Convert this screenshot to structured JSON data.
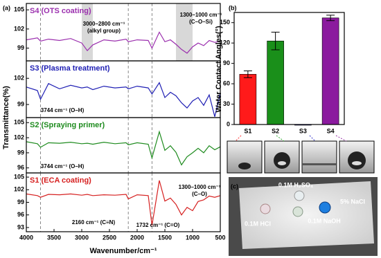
{
  "panel_labels": [
    "(a)",
    "(b)",
    "(c)"
  ],
  "photo_labels": [
    "0.1M H₂SO₄",
    "5% NaCl",
    "0.1M HCl",
    "0.1M NaOH"
  ],
  "chart_data": [
    {
      "type": "line",
      "title": "S4 (OTS coating)",
      "color": "#9b2fae",
      "ylabel": "Transmittance(%)",
      "x": [
        4000,
        3800,
        3744,
        3600,
        3400,
        3200,
        3000,
        2900,
        2800,
        2600,
        2400,
        2200,
        2160,
        2000,
        1800,
        1732,
        1600,
        1500,
        1400,
        1300,
        1200,
        1100,
        1000,
        900,
        800,
        700,
        600,
        500
      ],
      "values": [
        100.3,
        100.6,
        100.1,
        100.4,
        100.2,
        100.5,
        99.8,
        98.6,
        99.5,
        100.3,
        100.1,
        100.4,
        100.0,
        100.3,
        100.2,
        99.0,
        101.5,
        100.0,
        100.3,
        99.6,
        98.8,
        98.2,
        99.2,
        99.8,
        99.4,
        100.2,
        99.9,
        100.1
      ],
      "xlim": [
        4000,
        500
      ],
      "ylim": [
        97,
        106
      ],
      "yticks": [
        99,
        102,
        105
      ],
      "vlines": [
        3744,
        2160,
        1732
      ],
      "bands": [
        [
          3000,
          2800
        ],
        [
          1300,
          1000
        ]
      ],
      "annotations": [
        [
          "3000–2800 cm⁻¹",
          "(alkyl group)"
        ],
        [
          "1300–1000 cm⁻¹",
          "(C–O–Si)"
        ]
      ]
    },
    {
      "type": "line",
      "title": "S3 (Plasma treatment)",
      "color": "#1f1fb4",
      "x": [
        4000,
        3800,
        3744,
        3600,
        3400,
        3200,
        3000,
        2900,
        2800,
        2600,
        2400,
        2200,
        2160,
        2000,
        1800,
        1732,
        1600,
        1500,
        1400,
        1300,
        1200,
        1100,
        1000,
        900,
        800,
        700,
        600,
        500
      ],
      "values": [
        101.0,
        100.6,
        99.6,
        101.4,
        100.8,
        101.2,
        100.9,
        101.0,
        100.7,
        101.1,
        100.9,
        101.0,
        100.8,
        101.1,
        100.9,
        100.2,
        101.5,
        99.8,
        100.4,
        100.0,
        99.2,
        98.6,
        99.4,
        99.8,
        98.9,
        100.1,
        97.6,
        100.3
      ],
      "xlim": [
        4000,
        500
      ],
      "ylim": [
        97.5,
        104
      ],
      "yticks": [
        99,
        102
      ],
      "vlines": [
        3744,
        2160,
        1732
      ],
      "annotations": [
        [
          "3744 cm⁻¹ (O–H)"
        ]
      ]
    },
    {
      "type": "line",
      "title": "S2 (Spraying primer)",
      "color": "#1e8b1e",
      "x": [
        4000,
        3800,
        3744,
        3600,
        3400,
        3200,
        3000,
        2900,
        2800,
        2600,
        2400,
        2200,
        2160,
        2000,
        1800,
        1732,
        1600,
        1500,
        1400,
        1300,
        1200,
        1100,
        1000,
        900,
        800,
        700,
        600,
        500
      ],
      "values": [
        101.2,
        100.8,
        100.1,
        101.0,
        100.9,
        101.1,
        100.8,
        100.9,
        100.7,
        101.1,
        100.8,
        101.0,
        100.6,
        101.0,
        100.7,
        98.0,
        103.2,
        99.5,
        100.4,
        99.1,
        96.6,
        98.2,
        99.0,
        99.9,
        99.0,
        100.4,
        99.6,
        100.2
      ],
      "xlim": [
        4000,
        500
      ],
      "ylim": [
        95,
        106
      ],
      "yticks": [
        96,
        99,
        102,
        105
      ],
      "vlines": [
        3744,
        2160,
        1732
      ],
      "annotations": [
        [
          "3744 cm⁻¹ (O–H)"
        ]
      ]
    },
    {
      "type": "line",
      "title": "S1 (ECA coating)",
      "color": "#d62020",
      "xlabel": "Wavenumber/cm⁻¹",
      "x": [
        4000,
        3800,
        3744,
        3600,
        3400,
        3200,
        3000,
        2900,
        2800,
        2600,
        2400,
        2200,
        2160,
        2000,
        1800,
        1732,
        1600,
        1500,
        1400,
        1300,
        1200,
        1100,
        1000,
        900,
        800,
        700,
        600,
        500
      ],
      "values": [
        101.0,
        100.6,
        100.2,
        100.9,
        100.8,
        101.0,
        100.7,
        100.9,
        100.6,
        100.8,
        100.7,
        100.9,
        99.8,
        100.8,
        100.6,
        93.5,
        104.2,
        99.3,
        100.0,
        98.5,
        96.0,
        97.8,
        97.0,
        99.2,
        99.6,
        100.5,
        100.2,
        100.6
      ],
      "xlim": [
        4000,
        500
      ],
      "xticks": [
        4000,
        3500,
        3000,
        2500,
        2000,
        1500,
        1000,
        500
      ],
      "ylim": [
        92,
        106
      ],
      "yticks": [
        93,
        96,
        99,
        102,
        105
      ],
      "vlines": [
        3744,
        2160,
        1732
      ],
      "annotations": [
        [
          "1300–1000 cm⁻¹",
          "(C–O)"
        ],
        [
          "2160 cm⁻¹ (C≡N)"
        ],
        [
          "1732 cm⁻¹ (C=O)"
        ]
      ]
    },
    {
      "type": "bar",
      "ylabel": "Water Contact Angles(°)",
      "categories": [
        "S1",
        "S2",
        "S3",
        "S4"
      ],
      "values": [
        74,
        123,
        0,
        157
      ],
      "errors": [
        5,
        13,
        0,
        4
      ],
      "colors": [
        "#ff1a1a",
        "#1a8f1a",
        "#1a1acc",
        "#8b1a9e"
      ],
      "ylim": [
        0,
        165
      ],
      "yticks": [
        0,
        30,
        60,
        90,
        120,
        150
      ]
    }
  ]
}
